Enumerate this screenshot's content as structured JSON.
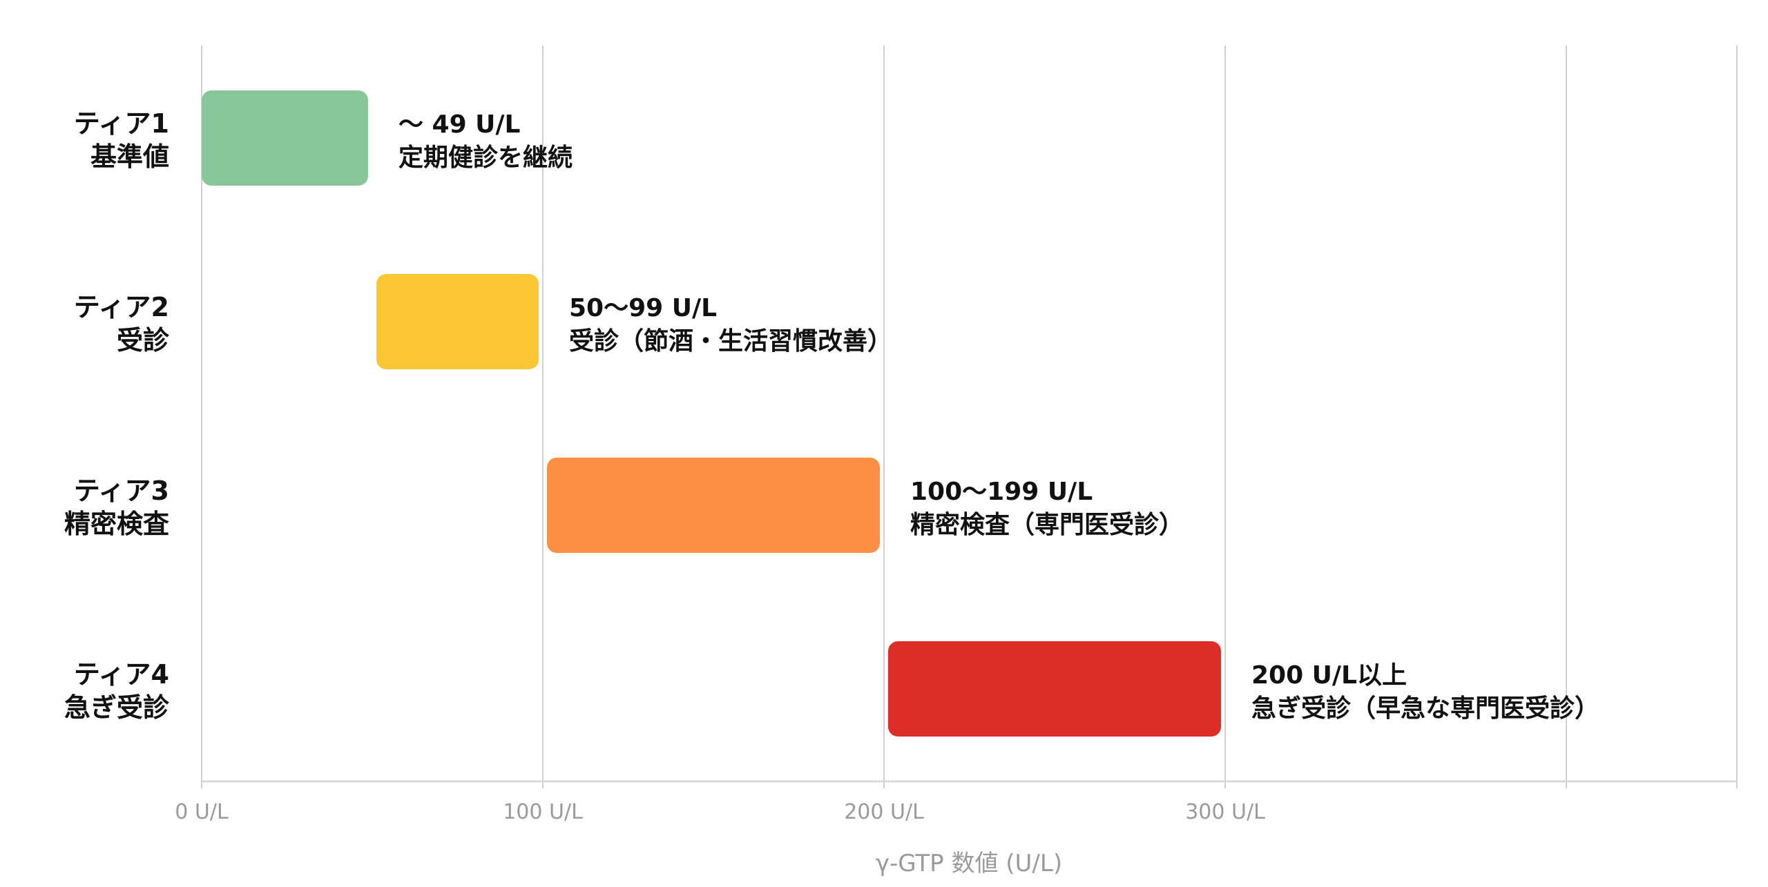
{
  "chart_data": {
    "type": "bar",
    "orientation": "horizontal-range",
    "title": "",
    "xlabel": "γ-GTP 数値 (U/L)",
    "ylabel": "",
    "xlim": [
      0,
      450
    ],
    "grid": true,
    "x_ticks": [
      0,
      100,
      200,
      300,
      400
    ],
    "x_tick_labels": [
      "0 U/L",
      "100 U/L",
      "200 U/L",
      "300 U/L",
      ""
    ],
    "series": [
      {
        "tier": "ティア1",
        "name": "基準値",
        "start": 0,
        "end": 49,
        "range_label": "～ 49 U/L",
        "action": "定期健診を継続",
        "color": "#88c79a"
      },
      {
        "tier": "ティア2",
        "name": "受診",
        "start": 50,
        "end": 99,
        "range_label": "50～99 U/L",
        "action": "受診（節酒・生活習慣改善）",
        "color": "#fcc735"
      },
      {
        "tier": "ティア3",
        "name": "精密検査",
        "start": 100,
        "end": 199,
        "range_label": "100～199 U/L",
        "action": "精密検査（専門医受診）",
        "color": "#fc8f43"
      },
      {
        "tier": "ティア4",
        "name": "急ぎ受診",
        "start": 200,
        "end": 299,
        "range_label": "200 U/L以上",
        "action": "急ぎ受診（早急な専門医受診）",
        "color": "#dc2e27"
      }
    ]
  }
}
